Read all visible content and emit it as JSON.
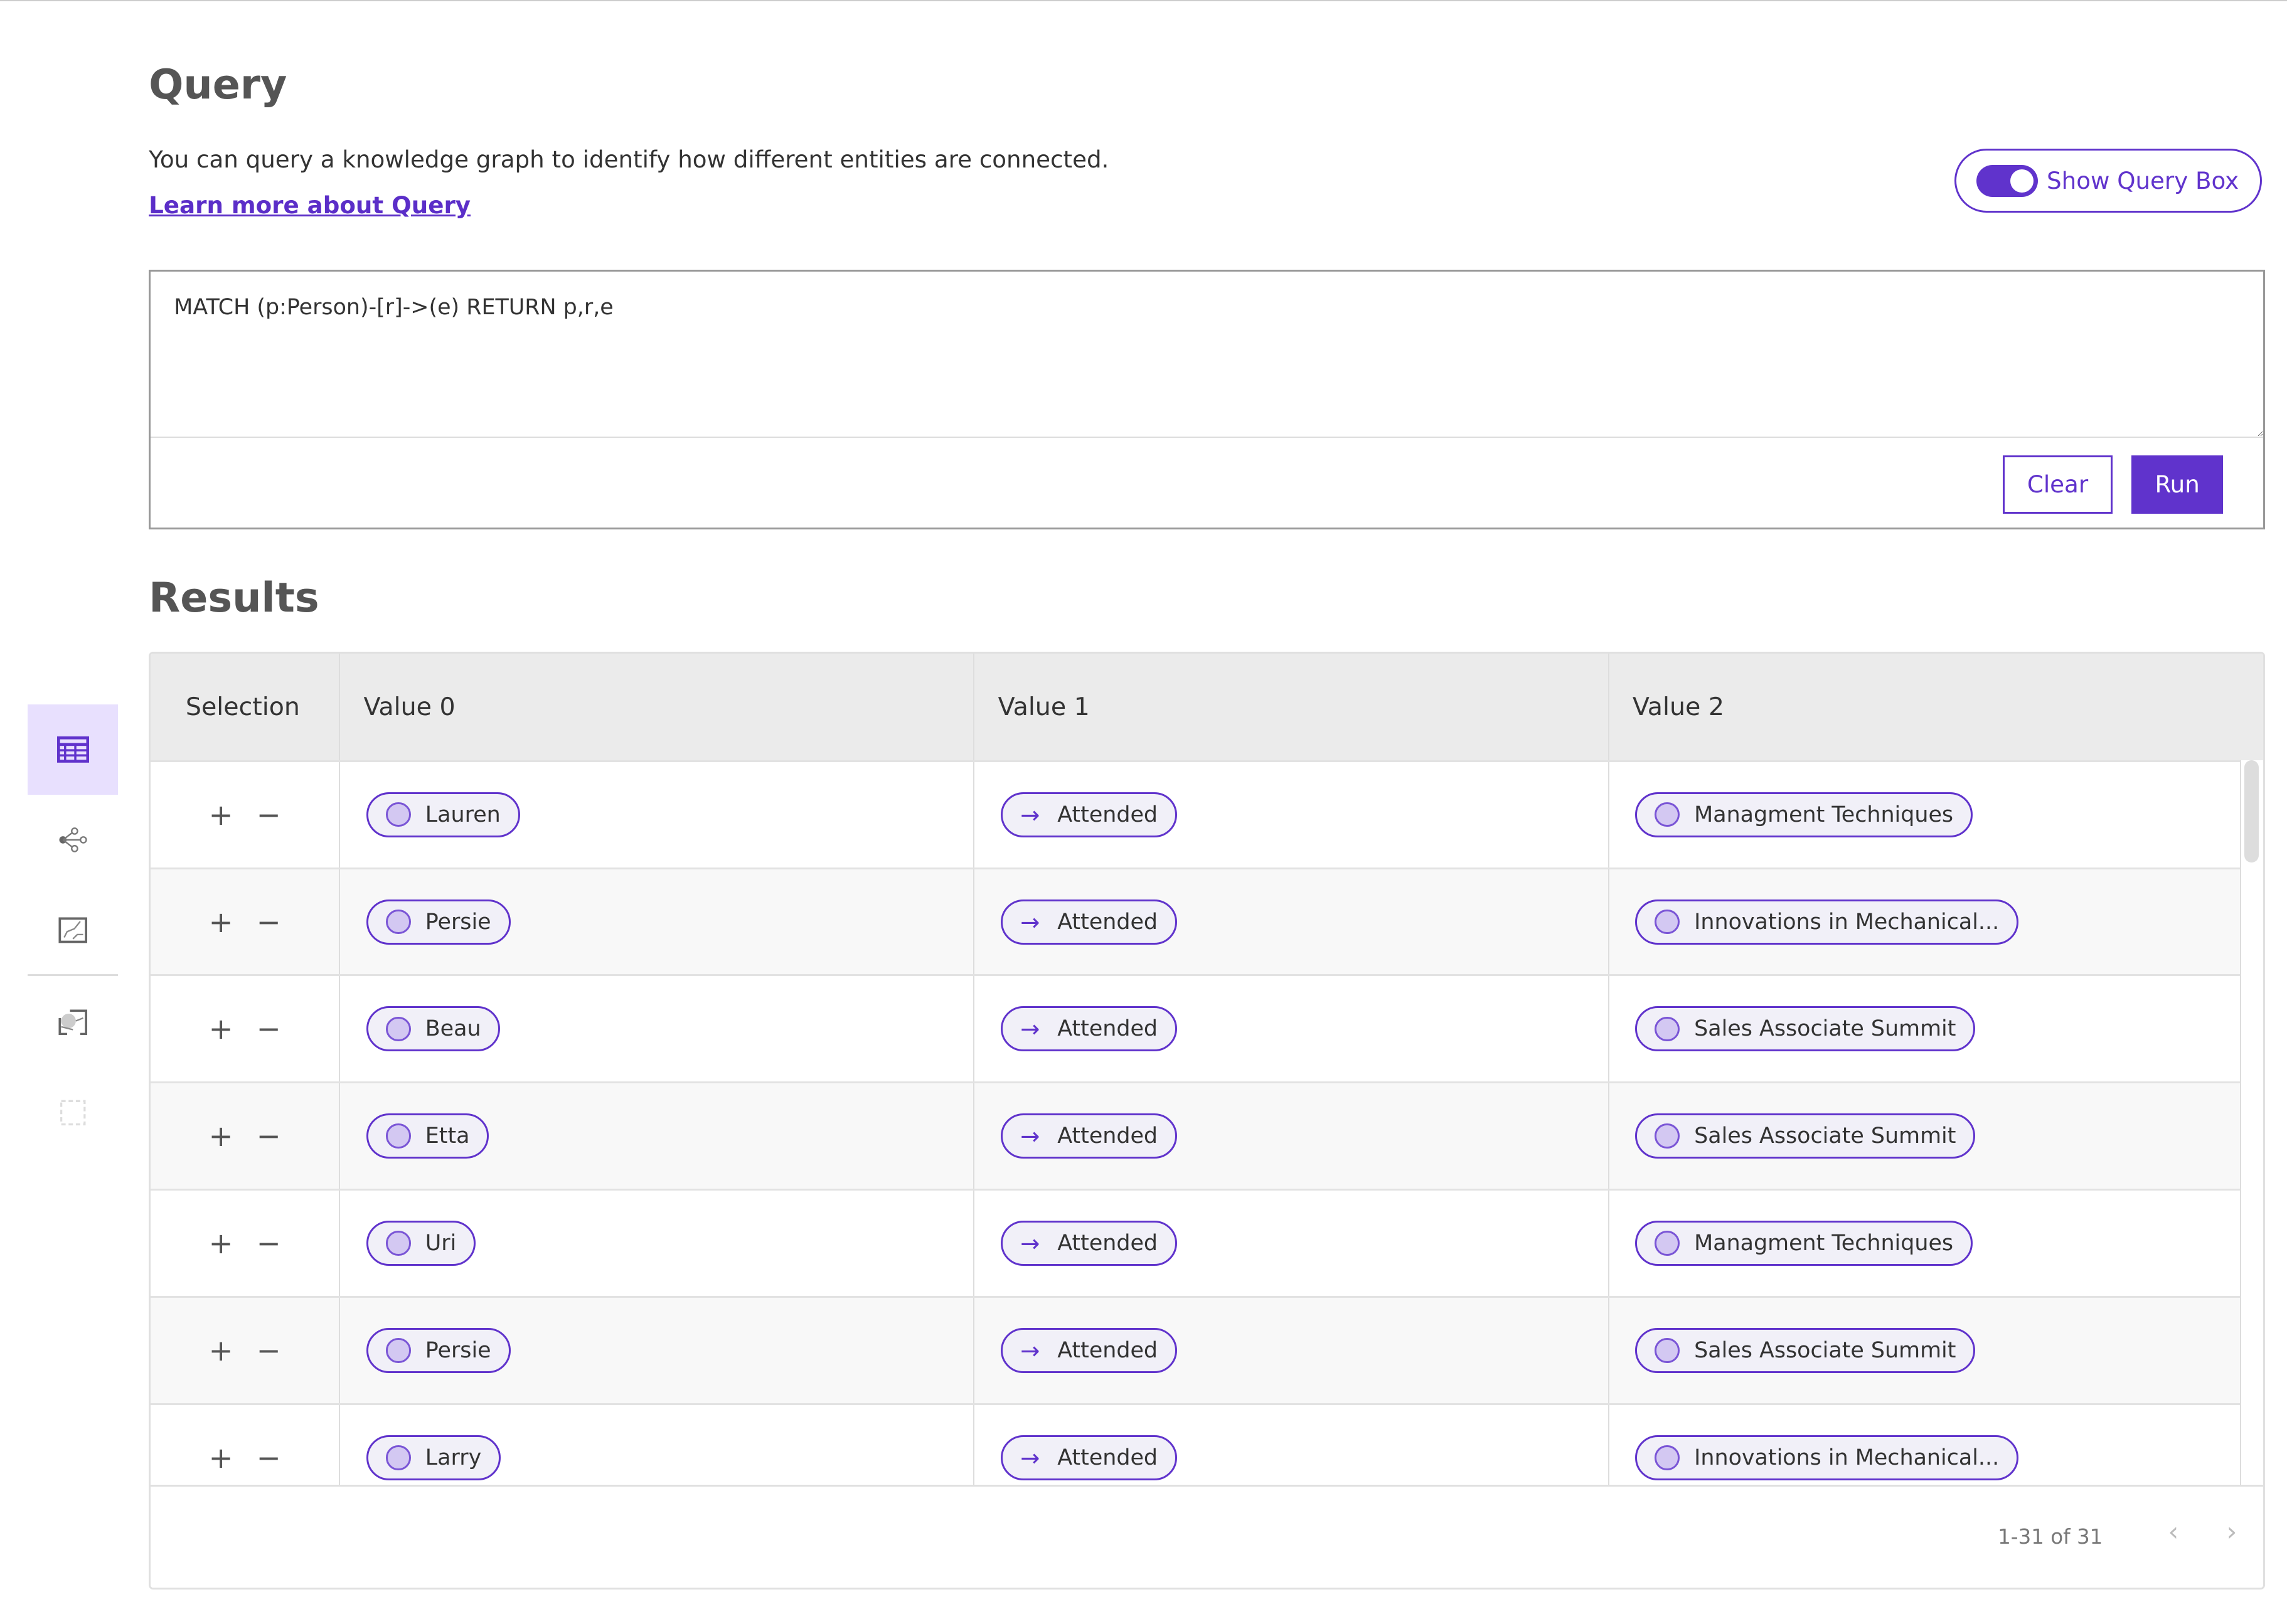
{
  "query": {
    "title": "Query",
    "description": "You can query a knowledge graph to identify how different entities are connected.",
    "learn_more": "Learn more about Query",
    "toggle_label": "Show Query Box",
    "toggle_on": true,
    "text": "MATCH (p:Person)-[r]->(e) RETURN p,r,e",
    "clear_label": "Clear",
    "run_label": "Run"
  },
  "results": {
    "title": "Results",
    "columns": [
      "Selection",
      "Value 0",
      "Value 1",
      "Value 2"
    ],
    "rows": [
      {
        "v0": "Lauren",
        "v1": "Attended",
        "v2": "Managment Techniques"
      },
      {
        "v0": "Persie",
        "v1": "Attended",
        "v2": "Innovations in Mechanical..."
      },
      {
        "v0": "Beau",
        "v1": "Attended",
        "v2": "Sales Associate Summit"
      },
      {
        "v0": "Etta",
        "v1": "Attended",
        "v2": "Sales Associate Summit"
      },
      {
        "v0": "Uri",
        "v1": "Attended",
        "v2": "Managment Techniques"
      },
      {
        "v0": "Persie",
        "v1": "Attended",
        "v2": "Sales Associate Summit"
      },
      {
        "v0": "Larry",
        "v1": "Attended",
        "v2": "Innovations in Mechanical..."
      }
    ],
    "add_symbol": "+",
    "remove_symbol": "−",
    "arrow_symbol": "→",
    "pagination": "1-31 of 31"
  },
  "sidebar": {
    "items": [
      {
        "icon": "table-icon",
        "active": true
      },
      {
        "icon": "graph-icon",
        "active": false
      },
      {
        "icon": "chart-icon",
        "active": false
      },
      {
        "icon": "map-selection-icon",
        "active": false
      },
      {
        "icon": "dashed-selection-icon",
        "active": false
      }
    ]
  },
  "colors": {
    "accent": "#6033cc",
    "active_bg": "#e8e0fe",
    "pill_bg": "#f1f0f8",
    "node_dot": "#d3c8f2"
  }
}
